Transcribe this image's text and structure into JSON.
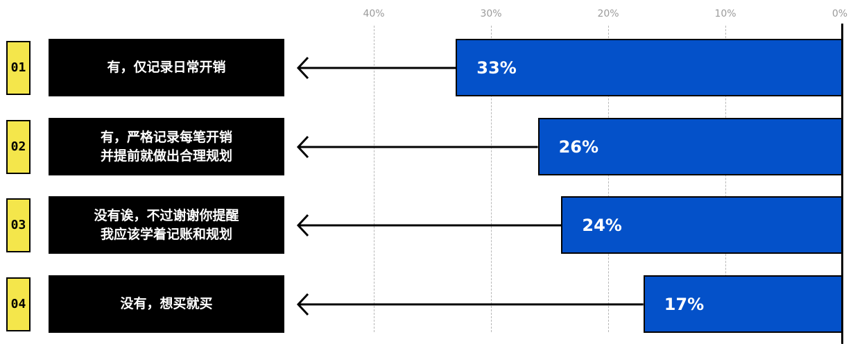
{
  "chart_data": {
    "type": "bar",
    "orientation": "horizontal",
    "axis_ticks": [
      "40%",
      "30%",
      "20%",
      "10%",
      "0%"
    ],
    "xlim": [
      0,
      40
    ],
    "grid": true,
    "categories": [
      "有，仅记录日常开销",
      "有，严格记录每笔开销\n并提前就做出合理规划",
      "没有诶，不过谢谢你提醒\n我应该学着记账和规划",
      "没有，想买就买"
    ],
    "numbers": [
      "01",
      "02",
      "03",
      "04"
    ],
    "values": [
      33,
      26,
      24,
      17
    ],
    "value_labels": [
      "33%",
      "26%",
      "24%",
      "17%"
    ]
  },
  "colors": {
    "bar": "#0451c9",
    "number_badge": "#f4e64b",
    "label_box": "#000000",
    "grid": "#b7b7b7"
  },
  "icons": {
    "arrow": "arrow-left-icon"
  }
}
